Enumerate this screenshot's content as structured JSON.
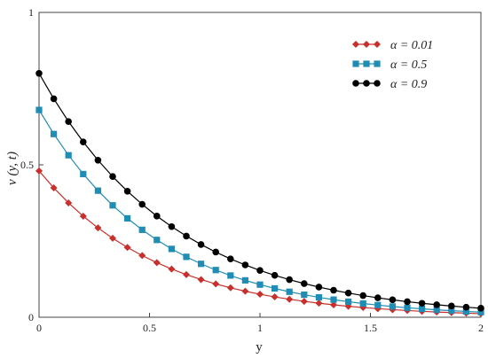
{
  "chart_data": {
    "type": "line",
    "xlabel": "y",
    "ylabel": "v (y, t)",
    "xlim": [
      0,
      2
    ],
    "ylim": [
      0,
      1
    ],
    "x_ticks": [
      "0",
      "0.5",
      "1",
      "1.5",
      "2"
    ],
    "y_ticks": [
      "0",
      "0.5",
      "1"
    ],
    "grid": false,
    "legend_position": "top-right",
    "series": [
      {
        "name": "α = 0.01",
        "color": "#c8302c",
        "marker": "diamond",
        "y0": 0.48,
        "decay_rate": 1.85
      },
      {
        "name": "α = 0.5",
        "color": "#1f8db4",
        "marker": "square",
        "y0": 0.68,
        "decay_rate": 1.85
      },
      {
        "name": "α = 0.9",
        "color": "#000000",
        "marker": "circle",
        "y0": 0.8,
        "decay_rate": 1.65
      }
    ],
    "x": [
      0,
      0.0667,
      0.1333,
      0.2,
      0.2667,
      0.3333,
      0.4,
      0.4667,
      0.5333,
      0.6,
      0.6667,
      0.7333,
      0.8,
      0.8667,
      0.9333,
      1.0,
      1.0667,
      1.1333,
      1.2,
      1.2667,
      1.3333,
      1.4,
      1.4667,
      1.5333,
      1.6,
      1.6667,
      1.7333,
      1.8,
      1.8667,
      1.9333,
      2.0
    ]
  }
}
